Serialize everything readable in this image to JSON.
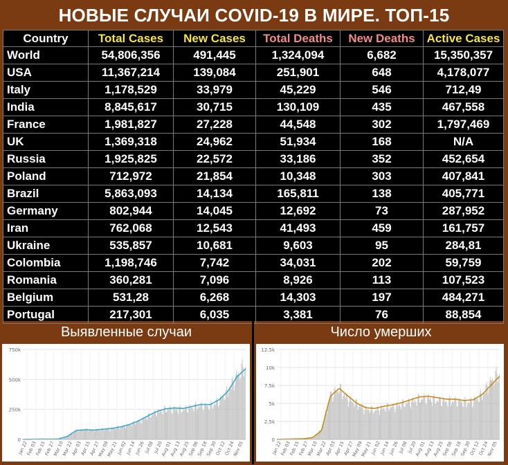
{
  "title": "НОВЫЕ СЛУЧАИ COVID-19 В МИРЕ. ТОП-15",
  "colors": {
    "background": "#7a3b12",
    "table_bg": "#000000",
    "header_country": "#ffffff",
    "header_total_cases": "#f5e642",
    "header_new_cases": "#f5e642",
    "header_total_deaths": "#f28b8b",
    "header_new_deaths": "#f28b8b",
    "header_active_cases": "#f5e642",
    "line_cases": "#3fa7c9",
    "line_deaths": "#c98a1d",
    "bars": "#b8b8b8"
  },
  "table": {
    "headers": [
      "Country",
      "Total Cases",
      "New Cases",
      "Total Deaths",
      "New Deaths",
      "Active Cases"
    ],
    "rows": [
      [
        "World",
        "54,806,356",
        "491,445",
        "1,324,094",
        "6,682",
        "15,350,357"
      ],
      [
        "USA",
        "11,367,214",
        "139,084",
        "251,901",
        "648",
        "4,178,077"
      ],
      [
        "Italy",
        "1,178,529",
        "33,979",
        "45,229",
        "546",
        "712,49"
      ],
      [
        "India",
        "8,845,617",
        "30,715",
        "130,109",
        "435",
        "467,558"
      ],
      [
        "France",
        "1,981,827",
        "27,228",
        "44,548",
        "302",
        "1,797,469"
      ],
      [
        "UK",
        "1,369,318",
        "24,962",
        "51,934",
        "168",
        "N/A"
      ],
      [
        "Russia",
        "1,925,825",
        "22,572",
        "33,186",
        "352",
        "452,654"
      ],
      [
        "Poland",
        "712,972",
        "21,854",
        "10,348",
        "303",
        "407,841"
      ],
      [
        "Brazil",
        "5,863,093",
        "14,134",
        "165,811",
        "138",
        "405,771"
      ],
      [
        "Germany",
        "802,944",
        "14,045",
        "12,692",
        "73",
        "287,952"
      ],
      [
        "Iran",
        "762,068",
        "12,543",
        "41,493",
        "459",
        "161,757"
      ],
      [
        "Ukraine",
        "535,857",
        "10,681",
        "9,603",
        "95",
        "284,81"
      ],
      [
        "Colombia",
        "1,198,746",
        "7,742",
        "34,031",
        "202",
        "59,759"
      ],
      [
        "Romania",
        "360,281",
        "7,096",
        "8,926",
        "113",
        "107,523"
      ],
      [
        "Belgium",
        "531,28",
        "6,268",
        "14,303",
        "197",
        "484,271"
      ],
      [
        "Portugal",
        "217,301",
        "6,035",
        "3,381",
        "76",
        "88,854"
      ]
    ]
  },
  "panels": {
    "left_title": "Выявленные случаи",
    "right_title": "Число умерших"
  },
  "chart_data": [
    {
      "type": "bar",
      "title": "Выявленные случаи",
      "ylim": [
        0,
        750000
      ],
      "yticks": [
        "0",
        "250k",
        "500k",
        "750k"
      ],
      "ytick_values": [
        0,
        250000,
        500000,
        750000
      ],
      "xticks": [
        "Jan 22",
        "Feb 03",
        "Feb 15",
        "Feb 27",
        "Mar 10",
        "Mar 22",
        "Apr 03",
        "Apr 15",
        "Apr 27",
        "May 09",
        "May 21",
        "Jun 02",
        "Jun 14",
        "Jun 26",
        "Jul 08",
        "Jul 20",
        "Aug 01",
        "Aug 13",
        "Aug 25",
        "Sep 06",
        "Sep 18",
        "Sep 30",
        "Oct 12",
        "Oct 24",
        "Nov 05"
      ],
      "grid": true,
      "series": [
        {
          "kind": "bars",
          "values": [
            0,
            2000,
            3000,
            2000,
            5000,
            30000,
            80000,
            85000,
            82000,
            88000,
            95000,
            110000,
            130000,
            160000,
            200000,
            240000,
            265000,
            270000,
            265000,
            285000,
            300000,
            295000,
            340000,
            420000,
            560000,
            650000
          ]
        },
        {
          "kind": "line",
          "values": [
            0,
            1500,
            2500,
            2000,
            4000,
            25000,
            75000,
            80000,
            78000,
            85000,
            92000,
            105000,
            125000,
            155000,
            195000,
            232000,
            255000,
            262000,
            258000,
            275000,
            292000,
            290000,
            330000,
            400000,
            520000,
            590000
          ]
        }
      ]
    },
    {
      "type": "bar",
      "title": "Число умерших",
      "ylim": [
        0,
        12500
      ],
      "yticks": [
        "0",
        "2.5k",
        "5k",
        "7.5k",
        "10k",
        "12.5k"
      ],
      "ytick_values": [
        0,
        2500,
        5000,
        7500,
        10000,
        12500
      ],
      "xticks": [
        "Jan 22",
        "Feb 03",
        "Feb 15",
        "Feb 27",
        "Mar 10",
        "Mar 22",
        "Apr 03",
        "Apr 15",
        "Apr 27",
        "May 09",
        "May 21",
        "Jun 02",
        "Jun 14",
        "Jun 26",
        "Jul 08",
        "Jul 20",
        "Aug 01",
        "Aug 13",
        "Aug 25",
        "Sep 06",
        "Sep 18",
        "Sep 30",
        "Oct 12",
        "Oct 24",
        "Nov 05"
      ],
      "grid": true,
      "series": [
        {
          "kind": "bars",
          "values": [
            0,
            50,
            80,
            100,
            300,
            1500,
            6500,
            7500,
            6000,
            5200,
            4500,
            4300,
            4700,
            4800,
            5200,
            5500,
            6000,
            6100,
            5800,
            5600,
            5700,
            5500,
            5600,
            6500,
            8500,
            9800
          ]
        },
        {
          "kind": "line",
          "values": [
            0,
            40,
            70,
            90,
            250,
            1200,
            6000,
            7100,
            6000,
            5000,
            4400,
            4300,
            4600,
            4800,
            5100,
            5500,
            5900,
            6000,
            5800,
            5600,
            5600,
            5400,
            5500,
            6200,
            7500,
            8800
          ]
        }
      ]
    }
  ]
}
